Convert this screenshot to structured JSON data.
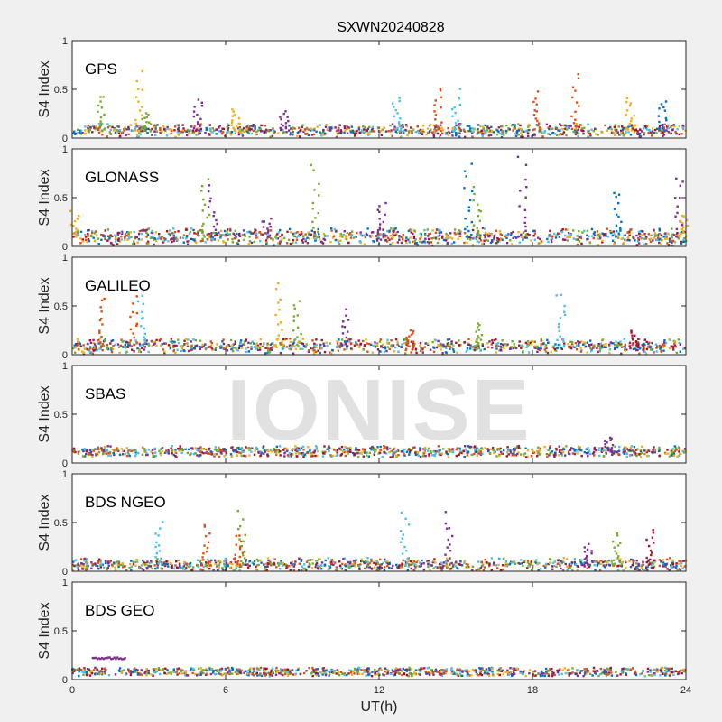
{
  "figure_title": "SXWN20240828",
  "xlabel": "UT(h)",
  "watermark": "IONISE",
  "colors": [
    "#0072bd",
    "#d95319",
    "#edb120",
    "#7e2f8e",
    "#77ac30",
    "#4dbeee",
    "#a2142f"
  ],
  "chart_data": [
    {
      "type": "scatter",
      "title": "GPS",
      "ylabel": "S4 Index",
      "xlim": [
        0,
        24
      ],
      "ylim": [
        0,
        1
      ],
      "xticks": [
        "0",
        "6",
        "12",
        "18",
        "24"
      ],
      "yticks": [
        "0",
        "0.5",
        "1"
      ],
      "baseline": 0.08,
      "noise": 0.04,
      "spikes": [
        {
          "x": 1.1,
          "h": 0.48,
          "c": 4
        },
        {
          "x": 2.6,
          "h": 0.7,
          "c": 2
        },
        {
          "x": 2.9,
          "h": 0.28,
          "c": 4
        },
        {
          "x": 4.9,
          "h": 0.44,
          "c": 3
        },
        {
          "x": 6.4,
          "h": 0.3,
          "c": 2
        },
        {
          "x": 8.3,
          "h": 0.28,
          "c": 3
        },
        {
          "x": 12.7,
          "h": 0.45,
          "c": 5
        },
        {
          "x": 14.3,
          "h": 0.58,
          "c": 1
        },
        {
          "x": 15.0,
          "h": 0.52,
          "c": 5
        },
        {
          "x": 18.2,
          "h": 0.48,
          "c": 1
        },
        {
          "x": 19.7,
          "h": 0.68,
          "c": 1
        },
        {
          "x": 21.8,
          "h": 0.45,
          "c": 2
        },
        {
          "x": 23.1,
          "h": 0.42,
          "c": 0
        }
      ]
    },
    {
      "type": "scatter",
      "title": "GLONASS",
      "ylabel": "S4 Index",
      "xlim": [
        0,
        24
      ],
      "ylim": [
        0,
        1
      ],
      "xticks": [
        "0",
        "6",
        "12",
        "18",
        "24"
      ],
      "yticks": [
        "0",
        "0.5",
        "1"
      ],
      "baseline": 0.1,
      "noise": 0.06,
      "spikes": [
        {
          "x": 0.1,
          "h": 0.38,
          "c": 2
        },
        {
          "x": 5.5,
          "h": 0.65,
          "c": 3
        },
        {
          "x": 5.2,
          "h": 0.7,
          "c": 4
        },
        {
          "x": 7.6,
          "h": 0.3,
          "c": 3
        },
        {
          "x": 9.5,
          "h": 0.9,
          "c": 4
        },
        {
          "x": 12.1,
          "h": 0.5,
          "c": 3
        },
        {
          "x": 15.5,
          "h": 0.92,
          "c": 0
        },
        {
          "x": 15.8,
          "h": 0.62,
          "c": 4
        },
        {
          "x": 17.6,
          "h": 0.96,
          "c": 3
        },
        {
          "x": 21.3,
          "h": 0.62,
          "c": 0
        },
        {
          "x": 23.7,
          "h": 0.78,
          "c": 3
        },
        {
          "x": 23.9,
          "h": 0.35,
          "c": 2
        }
      ]
    },
    {
      "type": "scatter",
      "title": "GALILEO",
      "ylabel": "S4 Index",
      "xlim": [
        0,
        24
      ],
      "ylim": [
        0,
        1
      ],
      "xticks": [
        "0",
        "6",
        "12",
        "18",
        "24"
      ],
      "yticks": [
        "0",
        "0.5",
        "1"
      ],
      "baseline": 0.09,
      "noise": 0.05,
      "spikes": [
        {
          "x": 1.2,
          "h": 0.62,
          "c": 1
        },
        {
          "x": 2.4,
          "h": 0.6,
          "c": 1
        },
        {
          "x": 2.7,
          "h": 0.65,
          "c": 5
        },
        {
          "x": 8.1,
          "h": 0.75,
          "c": 2
        },
        {
          "x": 8.8,
          "h": 0.6,
          "c": 4
        },
        {
          "x": 10.7,
          "h": 0.48,
          "c": 3
        },
        {
          "x": 13.2,
          "h": 0.28,
          "c": 1
        },
        {
          "x": 15.9,
          "h": 0.35,
          "c": 4
        },
        {
          "x": 19.1,
          "h": 0.68,
          "c": 5
        },
        {
          "x": 22.0,
          "h": 0.25,
          "c": 6
        }
      ]
    },
    {
      "type": "scatter",
      "title": "SBAS",
      "ylabel": "S4 Index",
      "xlim": [
        0,
        24
      ],
      "ylim": [
        0,
        1
      ],
      "xticks": [
        "0",
        "6",
        "12",
        "18",
        "24"
      ],
      "yticks": [
        "0",
        "0.5",
        "1"
      ],
      "baseline": 0.12,
      "noise": 0.03,
      "spikes": [
        {
          "x": 21.0,
          "h": 0.28,
          "c": 3
        }
      ]
    },
    {
      "type": "scatter",
      "title": "BDS NGEO",
      "ylabel": "S4 Index",
      "xlim": [
        0,
        24
      ],
      "ylim": [
        0,
        1
      ],
      "xticks": [
        "0",
        "6",
        "12",
        "18",
        "24"
      ],
      "yticks": [
        "0",
        "0.5",
        "1"
      ],
      "baseline": 0.07,
      "noise": 0.04,
      "spikes": [
        {
          "x": 3.4,
          "h": 0.52,
          "c": 5
        },
        {
          "x": 5.2,
          "h": 0.52,
          "c": 1
        },
        {
          "x": 6.6,
          "h": 0.65,
          "c": 4
        },
        {
          "x": 6.5,
          "h": 0.4,
          "c": 1
        },
        {
          "x": 13.0,
          "h": 0.65,
          "c": 5
        },
        {
          "x": 14.7,
          "h": 0.62,
          "c": 3
        },
        {
          "x": 20.2,
          "h": 0.3,
          "c": 3
        },
        {
          "x": 21.3,
          "h": 0.42,
          "c": 4
        },
        {
          "x": 22.6,
          "h": 0.45,
          "c": 6
        }
      ]
    },
    {
      "type": "scatter",
      "title": "BDS GEO",
      "ylabel": "S4 Index",
      "xlim": [
        0,
        24
      ],
      "ylim": [
        0,
        1
      ],
      "xticks": [
        "0",
        "6",
        "12",
        "18",
        "24"
      ],
      "yticks": [
        "0",
        "0.5",
        "1"
      ],
      "baseline": 0.08,
      "noise": 0.015,
      "segments": [
        {
          "x0": 0.8,
          "x1": 2.1,
          "y": 0.22,
          "c": 3
        }
      ],
      "spikes": []
    }
  ]
}
